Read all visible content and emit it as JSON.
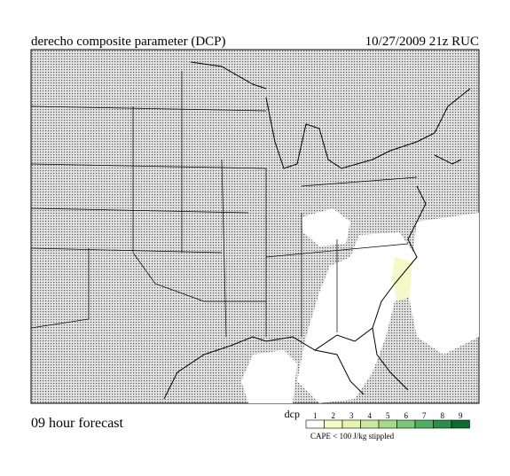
{
  "header": {
    "title": "derecho composite parameter (DCP)",
    "valid": "10/27/2009 21z RUC"
  },
  "footer": {
    "forecast": "09 hour forecast"
  },
  "legend": {
    "label": "dcp",
    "ticks": [
      1,
      2,
      3,
      4,
      5,
      6,
      7,
      8,
      9
    ],
    "colors": [
      "#ffffff",
      "#f7fcc4",
      "#e4f5b0",
      "#c9ea9e",
      "#a6d98a",
      "#7cc57a",
      "#4fae62",
      "#2a8f48",
      "#0d6b30"
    ],
    "note": "CAPE < 100 J/kg stippled"
  }
}
